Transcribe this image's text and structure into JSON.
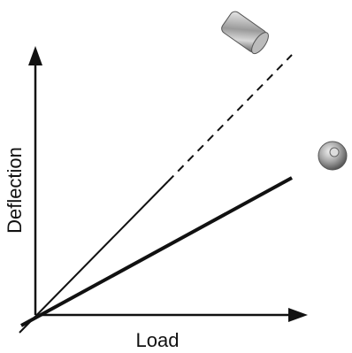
{
  "axes": {
    "x_label": "Load",
    "y_label": "Deflection"
  }
}
